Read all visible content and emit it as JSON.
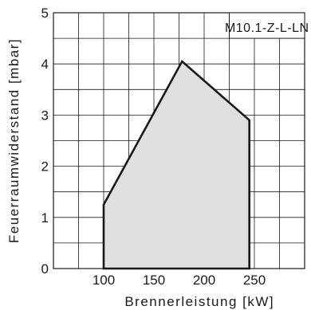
{
  "chart_data": {
    "type": "area",
    "title": "",
    "model_label": "M10.1-Z-L-LN",
    "xlabel": "Brennerleistung [kW]",
    "ylabel": "Feuerraumwiderstand [mbar]",
    "xlim": [
      50,
      300
    ],
    "ylim": [
      0,
      5
    ],
    "x_ticks": [
      "100",
      "150",
      "200",
      "250"
    ],
    "y_ticks": [
      "0",
      "1",
      "2",
      "3",
      "4",
      "5"
    ],
    "grid": true,
    "series": [
      {
        "name": "M10.1-Z-L-LN",
        "points": [
          {
            "x": 100,
            "y": 0
          },
          {
            "x": 100,
            "y": 1.25
          },
          {
            "x": 178,
            "y": 4.05
          },
          {
            "x": 245,
            "y": 2.9
          },
          {
            "x": 245,
            "y": 0
          }
        ]
      }
    ],
    "colors": {
      "fill": "#e0e0e0",
      "stroke": "#1a1a1a",
      "grid": "#1a1a1a"
    }
  }
}
